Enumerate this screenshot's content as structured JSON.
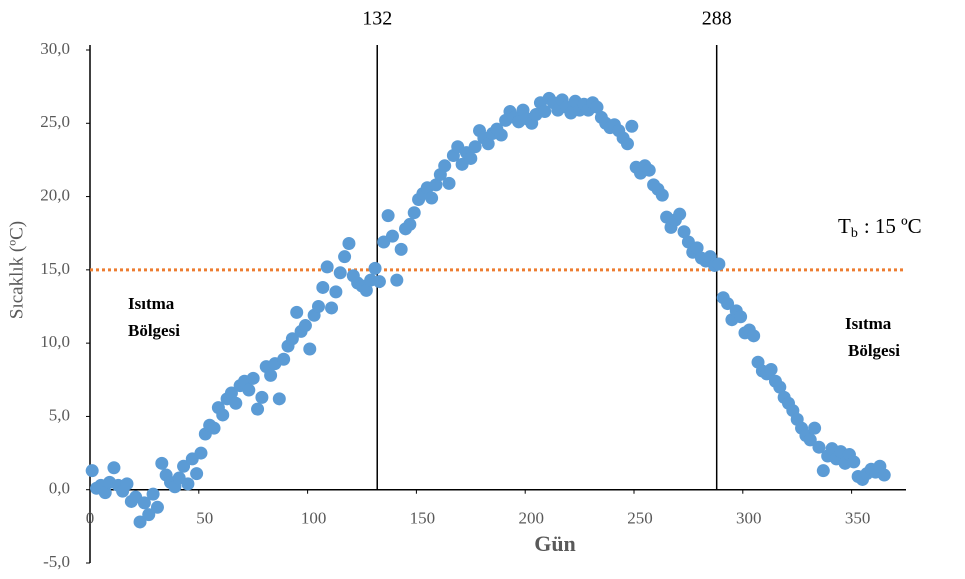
{
  "chart_data": {
    "type": "scatter",
    "x_label": "Gün",
    "y_label": "Sıcaklık (ºC)",
    "x": [
      1,
      3,
      5,
      7,
      9,
      11,
      13,
      15,
      17,
      19,
      21,
      23,
      25,
      27,
      29,
      31,
      33,
      35,
      37,
      39,
      41,
      43,
      45,
      47,
      49,
      51,
      53,
      55,
      57,
      59,
      61,
      63,
      65,
      67,
      69,
      71,
      73,
      75,
      77,
      79,
      81,
      83,
      85,
      87,
      89,
      91,
      93,
      95,
      97,
      99,
      101,
      103,
      105,
      107,
      109,
      111,
      113,
      115,
      117,
      119,
      121,
      123,
      125,
      127,
      129,
      131,
      133,
      135,
      137,
      139,
      141,
      143,
      145,
      147,
      149,
      151,
      153,
      155,
      157,
      159,
      161,
      163,
      165,
      167,
      169,
      171,
      173,
      175,
      177,
      179,
      181,
      183,
      185,
      187,
      189,
      191,
      193,
      195,
      197,
      199,
      201,
      203,
      205,
      207,
      209,
      211,
      213,
      215,
      217,
      219,
      221,
      223,
      225,
      227,
      229,
      231,
      233,
      235,
      237,
      239,
      241,
      243,
      245,
      247,
      249,
      251,
      253,
      255,
      257,
      259,
      261,
      263,
      265,
      267,
      269,
      271,
      273,
      275,
      277,
      279,
      281,
      283,
      285,
      287,
      289,
      291,
      293,
      295,
      297,
      299,
      301,
      303,
      305,
      307,
      309,
      311,
      313,
      315,
      317,
      319,
      321,
      323,
      325,
      327,
      329,
      331,
      333,
      335,
      337,
      339,
      341,
      343,
      345,
      347,
      349,
      351,
      353,
      355,
      357,
      359,
      361,
      363,
      365
    ],
    "values": [
      1.3,
      0.1,
      0.3,
      -0.2,
      0.5,
      1.5,
      0.3,
      -0.1,
      0.4,
      -0.8,
      -0.5,
      -2.2,
      -0.9,
      -1.7,
      -0.3,
      -1.2,
      1.8,
      1.0,
      0.5,
      0.2,
      0.8,
      1.6,
      0.4,
      2.1,
      1.1,
      2.5,
      3.8,
      4.4,
      4.2,
      5.6,
      5.1,
      6.2,
      6.6,
      5.9,
      7.1,
      7.4,
      6.8,
      7.6,
      5.5,
      6.3,
      8.4,
      7.8,
      8.6,
      6.2,
      8.9,
      9.8,
      10.3,
      12.1,
      10.8,
      11.2,
      9.6,
      11.9,
      12.5,
      13.8,
      15.2,
      12.4,
      13.5,
      14.8,
      15.9,
      16.8,
      14.6,
      14.1,
      13.9,
      13.6,
      14.3,
      15.1,
      14.2,
      16.9,
      18.7,
      17.3,
      14.3,
      16.4,
      17.8,
      18.1,
      18.9,
      19.8,
      20.2,
      20.6,
      19.9,
      20.8,
      21.5,
      22.1,
      20.9,
      22.8,
      23.4,
      22.2,
      23.0,
      22.6,
      23.4,
      24.5,
      24.0,
      23.6,
      24.3,
      24.6,
      24.2,
      25.2,
      25.8,
      25.4,
      25.1,
      25.9,
      25.3,
      25.0,
      25.6,
      26.4,
      25.8,
      26.7,
      26.4,
      25.9,
      26.6,
      26.1,
      25.7,
      26.5,
      25.9,
      26.3,
      25.9,
      26.4,
      26.1,
      25.4,
      25.0,
      24.7,
      24.9,
      24.5,
      24.0,
      23.6,
      24.8,
      22.0,
      21.6,
      22.1,
      21.8,
      20.8,
      20.5,
      20.1,
      18.6,
      17.9,
      18.4,
      18.8,
      17.6,
      16.9,
      16.2,
      16.5,
      15.8,
      15.6,
      15.9,
      15.3,
      15.4,
      13.1,
      12.7,
      11.6,
      12.2,
      11.8,
      10.7,
      10.9,
      10.5,
      8.7,
      8.1,
      7.9,
      8.2,
      7.4,
      7.0,
      6.3,
      5.9,
      5.4,
      4.8,
      4.2,
      3.7,
      3.4,
      4.2,
      2.9,
      1.3,
      2.3,
      2.8,
      2.1,
      2.6,
      1.8,
      2.4,
      1.9,
      0.9,
      0.7,
      1.1,
      1.4,
      1.2,
      1.6,
      1.0
    ],
    "color": "#5b9bd5",
    "xlim": [
      0,
      375
    ],
    "xticks": [
      0,
      50,
      100,
      150,
      200,
      250,
      300,
      350
    ],
    "ylim": [
      -5,
      30
    ],
    "yticks": [
      {
        "value": -5,
        "label": "-5,0"
      },
      {
        "value": 0,
        "label": "0,0"
      },
      {
        "value": 5,
        "label": "5,0"
      },
      {
        "value": 10,
        "label": "10,0"
      },
      {
        "value": 15,
        "label": "15,0"
      },
      {
        "value": 20,
        "label": "20,0"
      },
      {
        "value": 25,
        "label": "25,0"
      },
      {
        "value": 30,
        "label": "30,0"
      }
    ],
    "vlines": [
      132,
      288
    ],
    "threshold": 15,
    "threshold_color": "#ed7d31",
    "threshold_label": {
      "symbol": "T",
      "subscript": "b",
      "text": ": 15 ºC"
    },
    "annotations": [
      {
        "line1": "Isıtma",
        "line2": "Bölgesi"
      },
      {
        "line1": "Isıtma",
        "line2": "Bölgesi"
      }
    ]
  }
}
